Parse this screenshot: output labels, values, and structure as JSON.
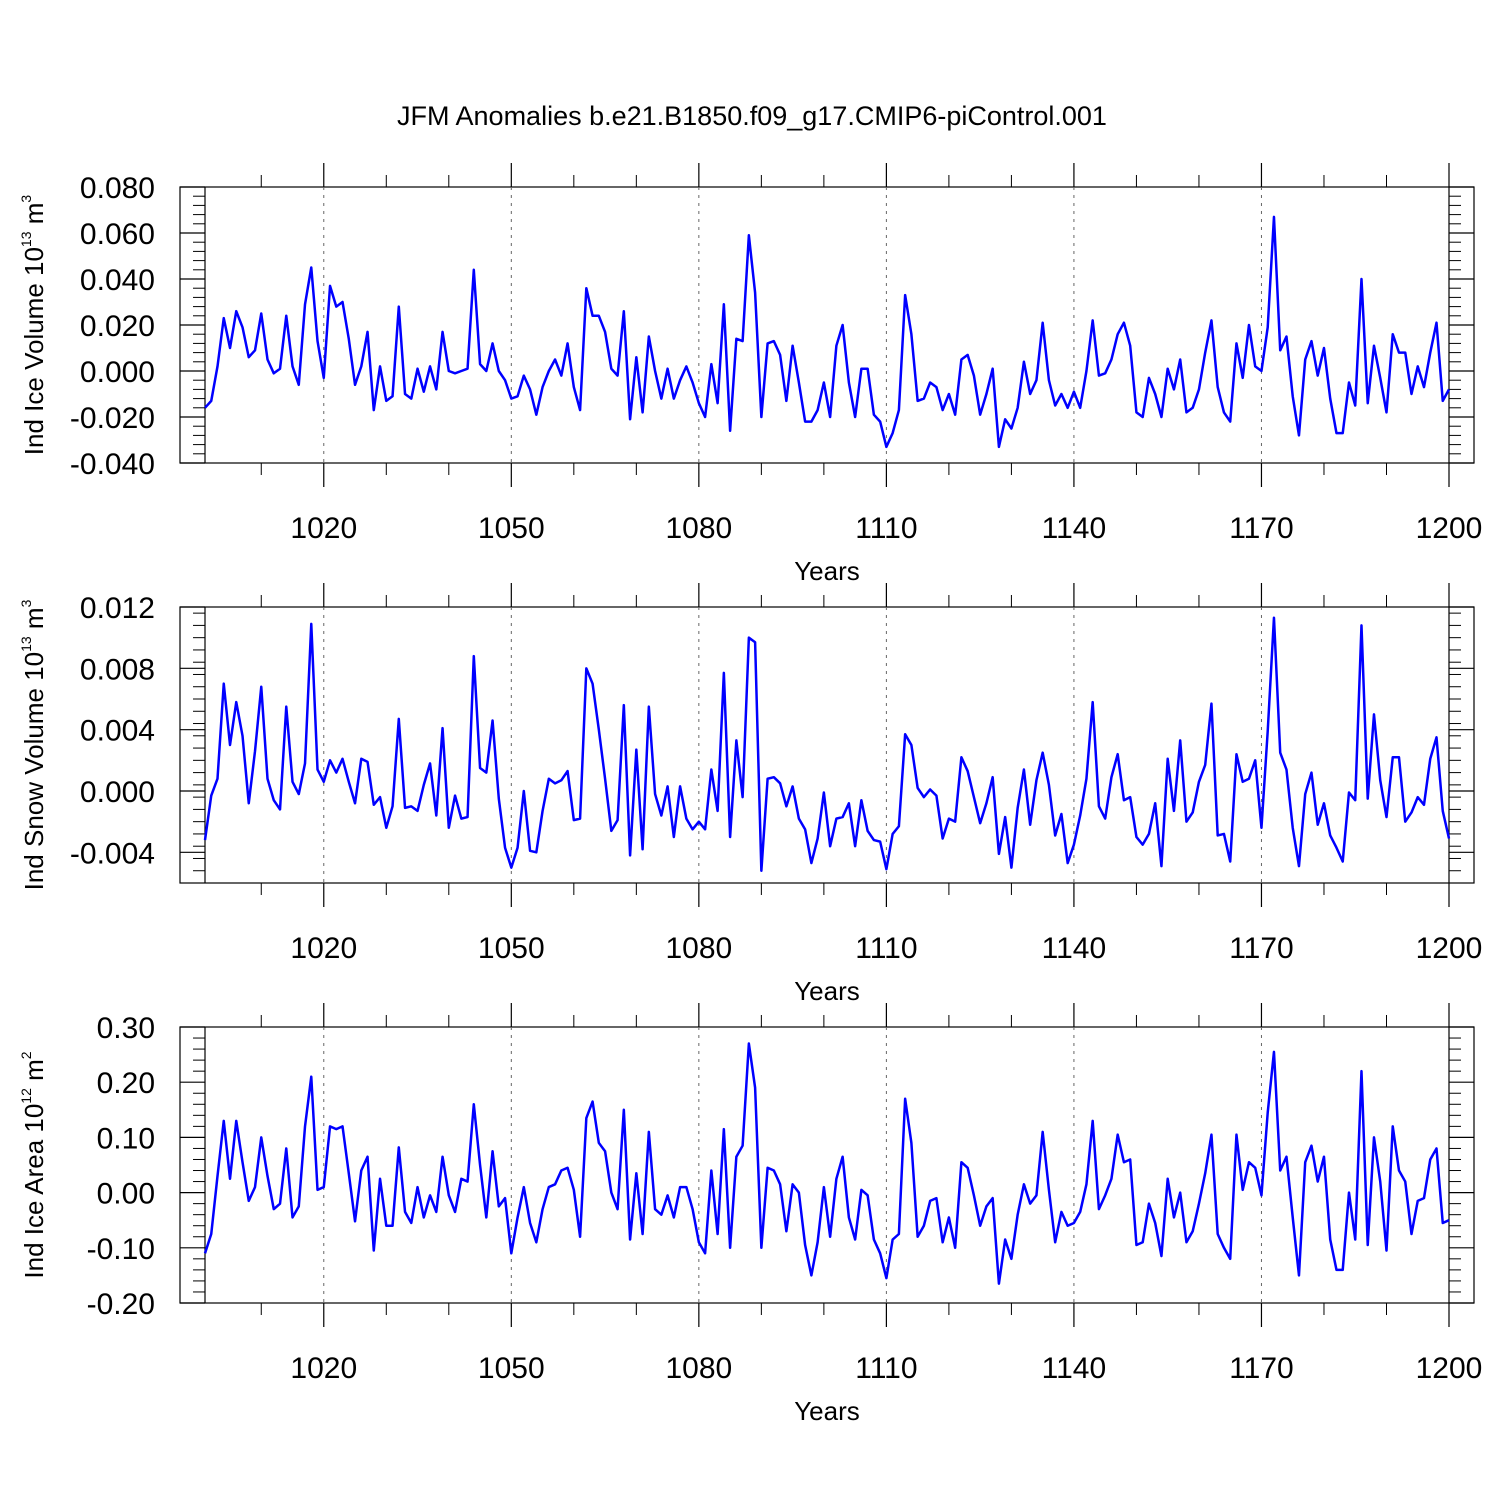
{
  "title": "JFM Anomalies b.e21.B1850.f09_g17.CMIP6-piControl.001",
  "line_color": "#0000ff",
  "chart_data": [
    {
      "type": "line",
      "title": "",
      "xlabel": "Years",
      "ylabel": {
        "text": "Ind Ice Volume 10",
        "exp": "13",
        "unit": " m",
        "unit_exp": "3"
      },
      "xlim": [
        1001,
        1200
      ],
      "ylim": [
        -0.04,
        0.08
      ],
      "xticks": [
        1020,
        1050,
        1080,
        1110,
        1140,
        1170,
        1200
      ],
      "xtick_labels": [
        "1020",
        "1050",
        "1080",
        "1110",
        "1140",
        "1170",
        "1200"
      ],
      "yticks": [
        -0.04,
        -0.02,
        0.0,
        0.02,
        0.04,
        0.06,
        0.08
      ],
      "ytick_labels": [
        "-0.040",
        "-0.020",
        "0.000",
        "0.020",
        "0.040",
        "0.060",
        "0.080"
      ],
      "grid": "vertical-dashed",
      "x_start": 1001,
      "series": [
        {
          "values": [
            -0.016,
            -0.013,
            0.002,
            0.023,
            0.01,
            0.026,
            0.019,
            0.006,
            0.009,
            0.025,
            0.005,
            -0.001,
            0.001,
            0.024,
            0.002,
            -0.006,
            0.029,
            0.045,
            0.013,
            -0.003,
            0.037,
            0.028,
            0.03,
            0.014,
            -0.006,
            0.002,
            0.017,
            -0.017,
            0.002,
            -0.013,
            -0.011,
            0.028,
            -0.01,
            -0.012,
            0.001,
            -0.009,
            0.002,
            -0.008,
            0.017,
            0.0,
            -0.001,
            0.0,
            0.001,
            0.044,
            0.003,
            0.0,
            0.012,
            0.0,
            -0.004,
            -0.012,
            -0.011,
            -0.002,
            -0.008,
            -0.019,
            -0.007,
            0.0,
            0.005,
            -0.002,
            0.012,
            -0.007,
            -0.017,
            0.036,
            0.024,
            0.024,
            0.017,
            0.001,
            -0.002,
            0.026,
            -0.021,
            0.006,
            -0.018,
            0.015,
            0.0,
            -0.012,
            0.001,
            -0.012,
            -0.004,
            0.002,
            -0.005,
            -0.014,
            -0.02,
            0.003,
            -0.014,
            0.029,
            -0.026,
            0.014,
            0.013,
            0.059,
            0.034,
            -0.02,
            0.012,
            0.013,
            0.007,
            -0.013,
            0.011,
            -0.005,
            -0.022,
            -0.022,
            -0.017,
            -0.005,
            -0.02,
            0.011,
            0.02,
            -0.005,
            -0.02,
            0.001,
            0.001,
            -0.019,
            -0.022,
            -0.033,
            -0.027,
            -0.017,
            0.033,
            0.016,
            -0.013,
            -0.012,
            -0.005,
            -0.007,
            -0.017,
            -0.01,
            -0.019,
            0.005,
            0.007,
            -0.002,
            -0.019,
            -0.01,
            0.001,
            -0.033,
            -0.021,
            -0.025,
            -0.016,
            0.004,
            -0.01,
            -0.004,
            0.021,
            -0.004,
            -0.015,
            -0.01,
            -0.016,
            -0.009,
            -0.016,
            0.0,
            0.022,
            -0.002,
            -0.001,
            0.005,
            0.016,
            0.021,
            0.011,
            -0.018,
            -0.02,
            -0.003,
            -0.01,
            -0.02,
            0.001,
            -0.008,
            0.005,
            -0.018,
            -0.016,
            -0.008,
            0.008,
            0.022,
            -0.007,
            -0.018,
            -0.022,
            0.012,
            -0.003,
            0.02,
            0.002,
            0.0,
            0.019,
            0.067,
            0.009,
            0.015,
            -0.011,
            -0.028,
            0.005,
            0.013,
            -0.002,
            0.01,
            -0.012,
            -0.027,
            -0.027,
            -0.005,
            -0.015,
            0.04,
            -0.014,
            0.011,
            -0.003,
            -0.018,
            0.016,
            0.008,
            0.008,
            -0.01,
            0.002,
            -0.007,
            0.008,
            0.021,
            -0.013,
            -0.008
          ]
        }
      ]
    },
    {
      "type": "line",
      "title": "",
      "xlabel": "Years",
      "ylabel": {
        "text": "Ind Snow Volume 10",
        "exp": "13",
        "unit": " m",
        "unit_exp": "3"
      },
      "xlim": [
        1001,
        1200
      ],
      "ylim": [
        -0.006,
        0.012
      ],
      "xticks": [
        1020,
        1050,
        1080,
        1110,
        1140,
        1170,
        1200
      ],
      "xtick_labels": [
        "1020",
        "1050",
        "1080",
        "1110",
        "1140",
        "1170",
        "1200"
      ],
      "yticks": [
        -0.004,
        0.0,
        0.004,
        0.008,
        0.012
      ],
      "ytick_labels": [
        "-0.004",
        "0.000",
        "0.004",
        "0.008",
        "0.012"
      ],
      "grid": "vertical-dashed",
      "x_start": 1001,
      "series": [
        {
          "values": [
            -0.0032,
            -0.0003,
            0.0008,
            0.007,
            0.003,
            0.0058,
            0.0036,
            -0.0008,
            0.0026,
            0.0068,
            0.0008,
            -0.0006,
            -0.0012,
            0.0055,
            0.0006,
            -0.0002,
            0.0018,
            0.0109,
            0.0014,
            0.0006,
            0.002,
            0.0012,
            0.0021,
            0.0006,
            -0.0008,
            0.0021,
            0.0019,
            -0.0009,
            -0.0004,
            -0.0024,
            -0.001,
            0.0047,
            -0.0011,
            -0.001,
            -0.0013,
            0.0004,
            0.0018,
            -0.0016,
            0.0041,
            -0.0024,
            -0.0003,
            -0.0018,
            -0.0017,
            0.0088,
            0.0015,
            0.0012,
            0.0046,
            -0.0005,
            -0.0037,
            -0.005,
            -0.0037,
            0.0,
            -0.0039,
            -0.004,
            -0.0013,
            0.0008,
            0.0005,
            0.0007,
            0.0013,
            -0.0019,
            -0.0018,
            0.008,
            0.007,
            0.004,
            0.0008,
            -0.0026,
            -0.0019,
            0.0056,
            -0.0042,
            0.0027,
            -0.0038,
            0.0055,
            -0.0002,
            -0.0016,
            0.0003,
            -0.003,
            0.0003,
            -0.0018,
            -0.0025,
            -0.002,
            -0.0025,
            0.0014,
            -0.0013,
            0.0077,
            -0.003,
            0.0033,
            -0.0004,
            0.01,
            0.0097,
            -0.0052,
            0.0008,
            0.0009,
            0.0005,
            -0.001,
            0.0003,
            -0.0018,
            -0.0025,
            -0.0047,
            -0.0031,
            -0.0001,
            -0.0036,
            -0.0018,
            -0.0017,
            -0.0008,
            -0.0036,
            -0.0006,
            -0.0026,
            -0.0032,
            -0.0033,
            -0.0051,
            -0.0028,
            -0.0023,
            0.0037,
            0.003,
            0.0002,
            -0.0004,
            0.0001,
            -0.0003,
            -0.0031,
            -0.0018,
            -0.002,
            0.0022,
            0.0013,
            -0.0004,
            -0.0021,
            -0.0008,
            0.0009,
            -0.0041,
            -0.0017,
            -0.005,
            -0.0011,
            0.0014,
            -0.0022,
            0.0007,
            0.0025,
            0.0004,
            -0.0029,
            -0.0015,
            -0.0047,
            -0.0035,
            -0.0016,
            0.0008,
            0.0058,
            -0.001,
            -0.0018,
            0.0009,
            0.0024,
            -0.0006,
            -0.0004,
            -0.003,
            -0.0035,
            -0.0028,
            -0.0008,
            -0.0049,
            0.0021,
            -0.0013,
            0.0033,
            -0.002,
            -0.0014,
            0.0006,
            0.0017,
            0.0057,
            -0.0029,
            -0.0028,
            -0.0046,
            0.0024,
            0.0006,
            0.0008,
            0.002,
            -0.0024,
            0.0039,
            0.0113,
            0.0025,
            0.0014,
            -0.0024,
            -0.0049,
            -0.0002,
            0.0012,
            -0.0022,
            -0.0008,
            -0.0029,
            -0.0037,
            -0.0046,
            -0.0001,
            -0.0006,
            0.0108,
            -0.0005,
            0.005,
            0.0007,
            -0.0017,
            0.0022,
            0.0022,
            -0.002,
            -0.0014,
            -0.0004,
            -0.0009,
            0.0021,
            0.0035,
            -0.0013,
            -0.0031
          ]
        }
      ]
    },
    {
      "type": "line",
      "title": "",
      "xlabel": "Years",
      "ylabel": {
        "text": "Ind Ice Area 10",
        "exp": "12",
        "unit": " m",
        "unit_exp": "2"
      },
      "xlim": [
        1001,
        1200
      ],
      "ylim": [
        -0.2,
        0.3
      ],
      "xticks": [
        1020,
        1050,
        1080,
        1110,
        1140,
        1170,
        1200
      ],
      "xtick_labels": [
        "1020",
        "1050",
        "1080",
        "1110",
        "1140",
        "1170",
        "1200"
      ],
      "yticks": [
        -0.2,
        -0.1,
        0.0,
        0.1,
        0.2,
        0.3
      ],
      "ytick_labels": [
        "-0.20",
        "-0.10",
        "0.00",
        "0.10",
        "0.20",
        "0.30"
      ],
      "grid": "vertical-dashed",
      "x_start": 1001,
      "series": [
        {
          "values": [
            -0.11,
            -0.075,
            0.03,
            0.13,
            0.025,
            0.13,
            0.055,
            -0.015,
            0.01,
            0.1,
            0.03,
            -0.03,
            -0.02,
            0.08,
            -0.045,
            -0.025,
            0.12,
            0.21,
            0.005,
            0.01,
            0.12,
            0.115,
            0.12,
            0.035,
            -0.052,
            0.04,
            0.065,
            -0.105,
            0.025,
            -0.06,
            -0.06,
            0.082,
            -0.035,
            -0.055,
            0.01,
            -0.045,
            -0.005,
            -0.035,
            0.065,
            -0.005,
            -0.035,
            0.025,
            0.02,
            0.16,
            0.05,
            -0.045,
            0.075,
            -0.025,
            -0.01,
            -0.11,
            -0.045,
            0.01,
            -0.055,
            -0.09,
            -0.03,
            0.01,
            0.015,
            0.04,
            0.045,
            0.005,
            -0.08,
            0.135,
            0.165,
            0.09,
            0.075,
            0.0,
            -0.03,
            0.15,
            -0.085,
            0.035,
            -0.075,
            0.11,
            -0.03,
            -0.04,
            -0.005,
            -0.045,
            0.01,
            0.01,
            -0.03,
            -0.09,
            -0.11,
            0.04,
            -0.075,
            0.115,
            -0.1,
            0.065,
            0.085,
            0.27,
            0.19,
            -0.1,
            0.045,
            0.04,
            0.015,
            -0.07,
            0.015,
            0.0,
            -0.095,
            -0.15,
            -0.09,
            0.01,
            -0.08,
            0.025,
            0.065,
            -0.045,
            -0.085,
            0.005,
            -0.005,
            -0.085,
            -0.11,
            -0.155,
            -0.085,
            -0.075,
            0.17,
            0.09,
            -0.08,
            -0.06,
            -0.015,
            -0.01,
            -0.09,
            -0.045,
            -0.1,
            0.055,
            0.045,
            -0.005,
            -0.06,
            -0.025,
            -0.01,
            -0.165,
            -0.085,
            -0.12,
            -0.04,
            0.015,
            -0.02,
            -0.005,
            0.11,
            0.005,
            -0.09,
            -0.035,
            -0.06,
            -0.055,
            -0.035,
            0.015,
            0.13,
            -0.03,
            -0.005,
            0.025,
            0.105,
            0.055,
            0.06,
            -0.095,
            -0.09,
            -0.02,
            -0.055,
            -0.115,
            0.025,
            -0.045,
            0.0,
            -0.09,
            -0.07,
            -0.02,
            0.035,
            0.105,
            -0.075,
            -0.1,
            -0.12,
            0.105,
            0.005,
            0.055,
            0.045,
            -0.005,
            0.145,
            0.255,
            0.04,
            0.065,
            -0.045,
            -0.15,
            0.055,
            0.085,
            0.02,
            0.065,
            -0.085,
            -0.14,
            -0.14,
            0.0,
            -0.085,
            0.22,
            -0.095,
            0.1,
            0.02,
            -0.105,
            0.12,
            0.04,
            0.02,
            -0.075,
            -0.015,
            -0.01,
            0.06,
            0.08,
            -0.055,
            -0.05
          ]
        }
      ]
    }
  ]
}
